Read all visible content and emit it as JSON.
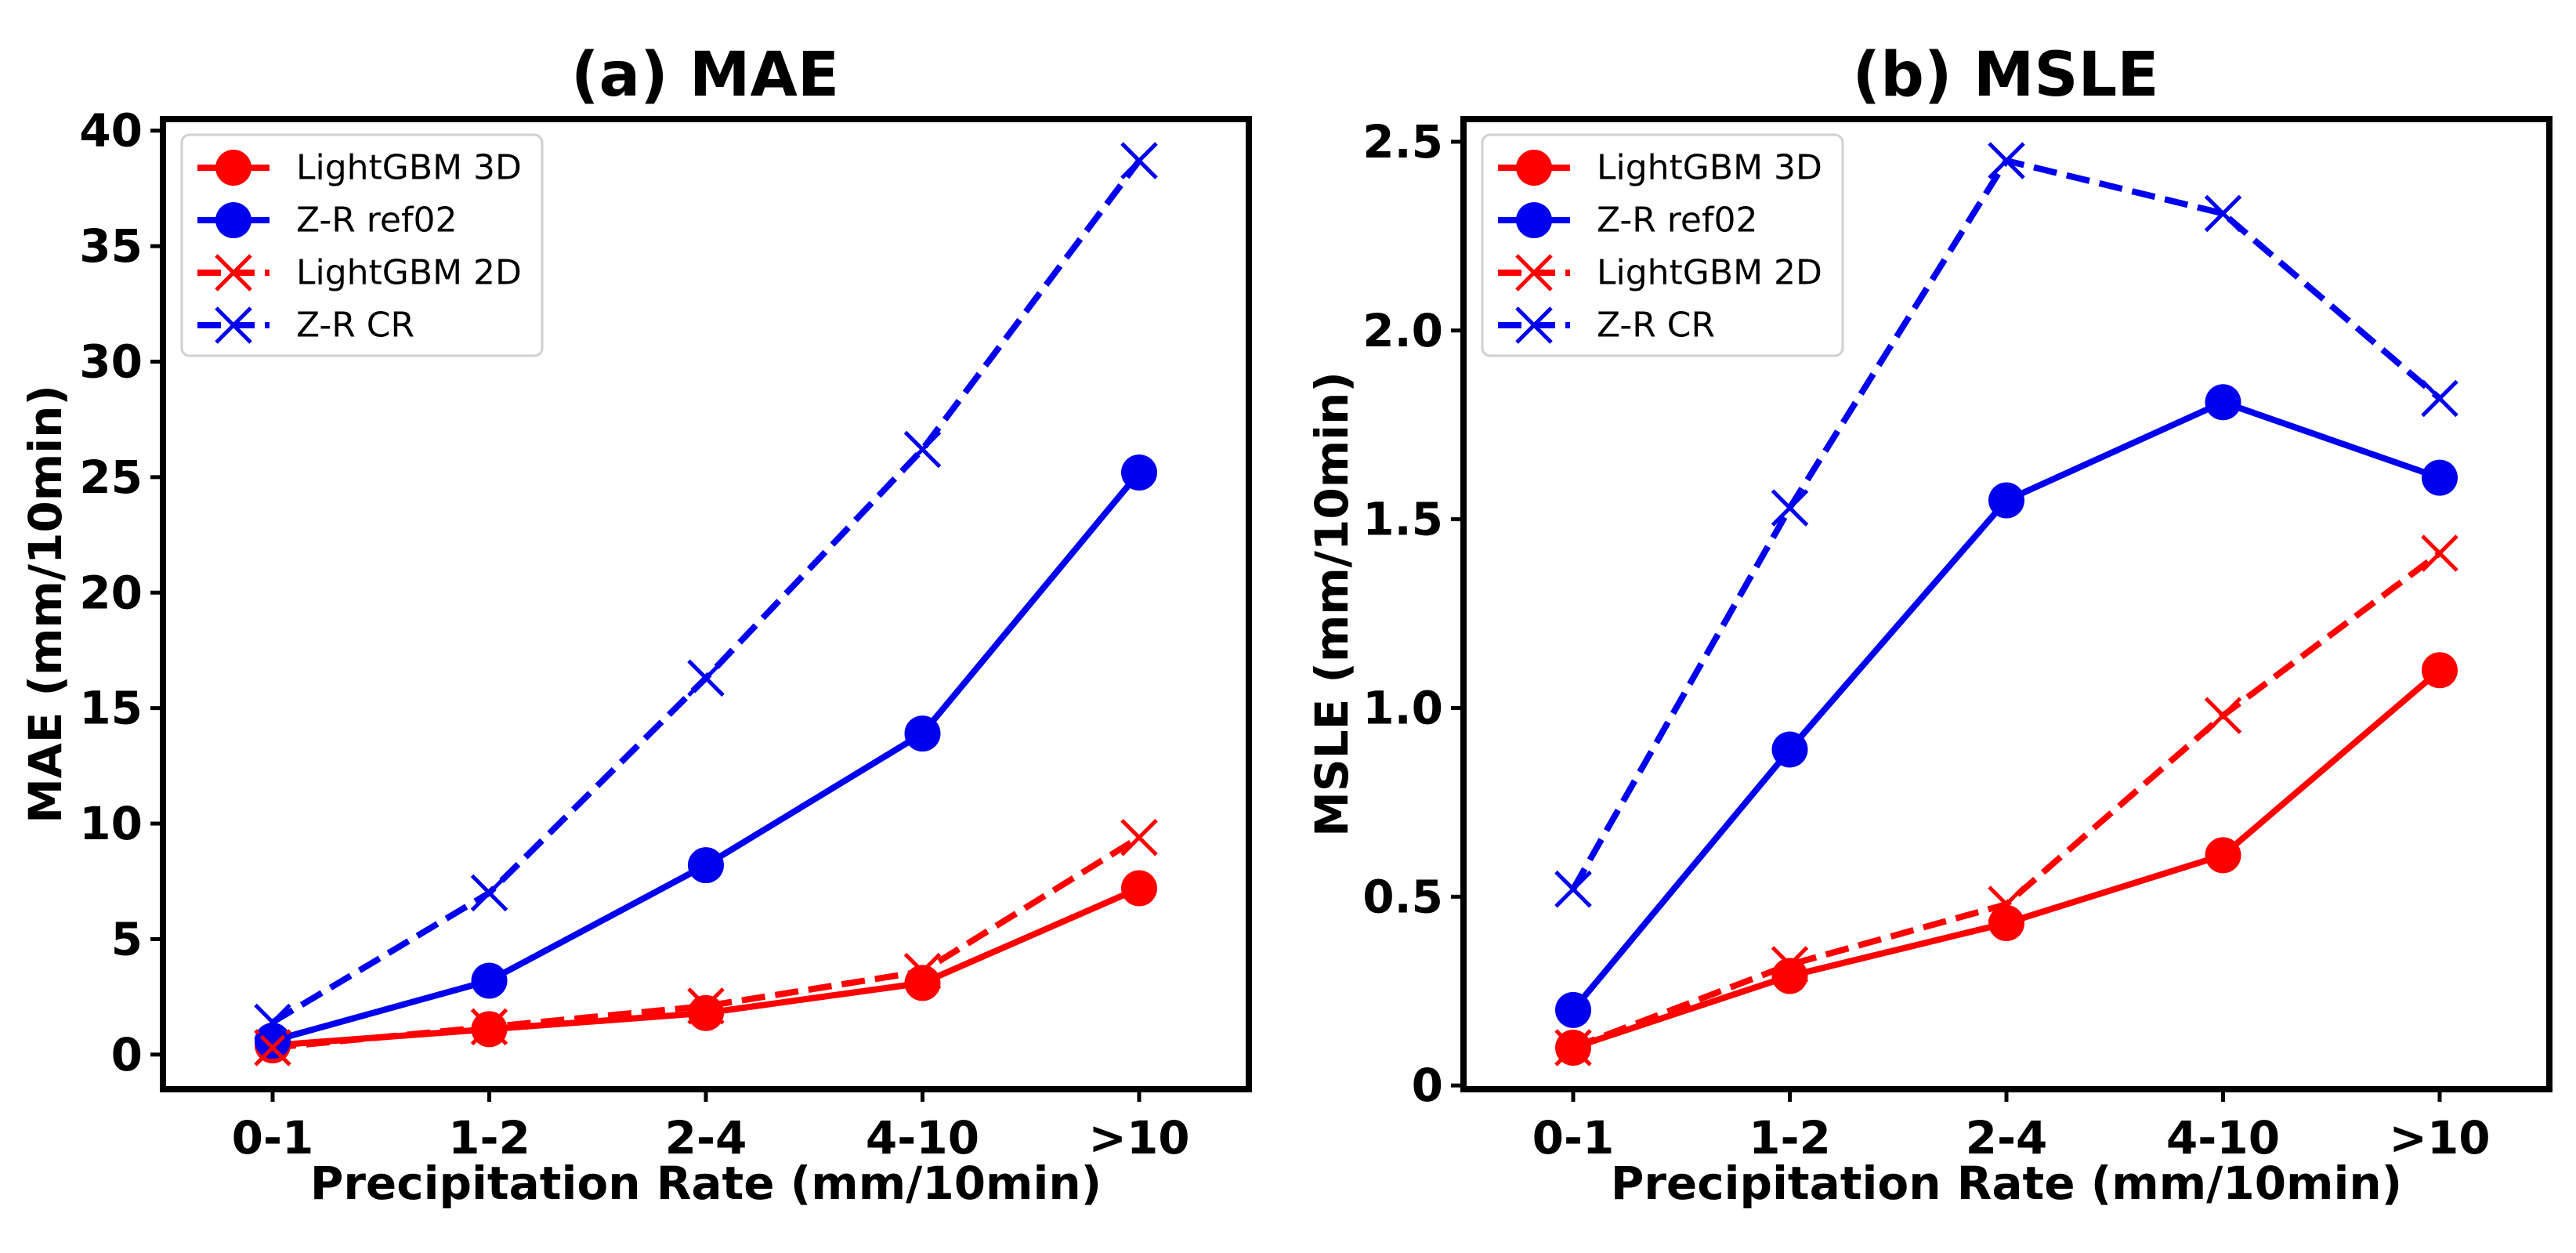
{
  "chart_data": [
    {
      "type": "line",
      "title": "(a) MAE",
      "xlabel": "Precipitation Rate (mm/10min)",
      "ylabel": "MAE (mm/10min)",
      "categories": [
        "0-1",
        "1-2",
        "2-4",
        "4-10",
        ">10"
      ],
      "ylim": [
        -1.5,
        40.5
      ],
      "yticks": [
        0,
        5,
        10,
        15,
        20,
        25,
        30,
        35,
        40
      ],
      "ytick_labels": [
        "0",
        "5",
        "10",
        "15",
        "20",
        "25",
        "30",
        "35",
        "40"
      ],
      "legend_position": "top-left",
      "grid": false,
      "series": [
        {
          "name": "LightGBM 3D",
          "color": "#ff0000",
          "dash": "solid",
          "marker": "circle",
          "values": [
            0.4,
            1.1,
            1.8,
            3.1,
            7.2
          ]
        },
        {
          "name": "Z-R ref02",
          "color": "#0000ee",
          "dash": "solid",
          "marker": "circle",
          "values": [
            0.6,
            3.2,
            8.2,
            13.9,
            25.2
          ]
        },
        {
          "name": "LightGBM 2D",
          "color": "#ff0000",
          "dash": "dashed",
          "marker": "x",
          "values": [
            0.3,
            1.2,
            2.1,
            3.6,
            9.4
          ]
        },
        {
          "name": "Z-R CR",
          "color": "#0000ee",
          "dash": "dashed",
          "marker": "x",
          "values": [
            1.4,
            7.0,
            16.3,
            26.2,
            38.7
          ]
        }
      ]
    },
    {
      "type": "line",
      "title": "(b) MSLE",
      "xlabel": "Precipitation Rate (mm/10min)",
      "ylabel": "MSLE (mm/10min)",
      "categories": [
        "0-1",
        "1-2",
        "2-4",
        "4-10",
        ">10"
      ],
      "ylim": [
        -0.01,
        2.56
      ],
      "yticks": [
        0,
        0.5,
        1.0,
        1.5,
        2.0,
        2.5
      ],
      "ytick_labels": [
        "0",
        "0.5",
        "1.0",
        "1.5",
        "2.0",
        "2.5"
      ],
      "legend_position": "top-left",
      "grid": false,
      "series": [
        {
          "name": "LightGBM 3D",
          "color": "#ff0000",
          "dash": "solid",
          "marker": "circle",
          "values": [
            0.1,
            0.29,
            0.43,
            0.61,
            1.1
          ]
        },
        {
          "name": "Z-R ref02",
          "color": "#0000ee",
          "dash": "solid",
          "marker": "circle",
          "values": [
            0.2,
            0.89,
            1.55,
            1.81,
            1.61
          ]
        },
        {
          "name": "LightGBM 2D",
          "color": "#ff0000",
          "dash": "dashed",
          "marker": "x",
          "values": [
            0.1,
            0.32,
            0.48,
            0.98,
            1.41
          ]
        },
        {
          "name": "Z-R CR",
          "color": "#0000ee",
          "dash": "dashed",
          "marker": "x",
          "values": [
            0.52,
            1.53,
            2.45,
            2.31,
            1.82
          ]
        }
      ]
    }
  ]
}
